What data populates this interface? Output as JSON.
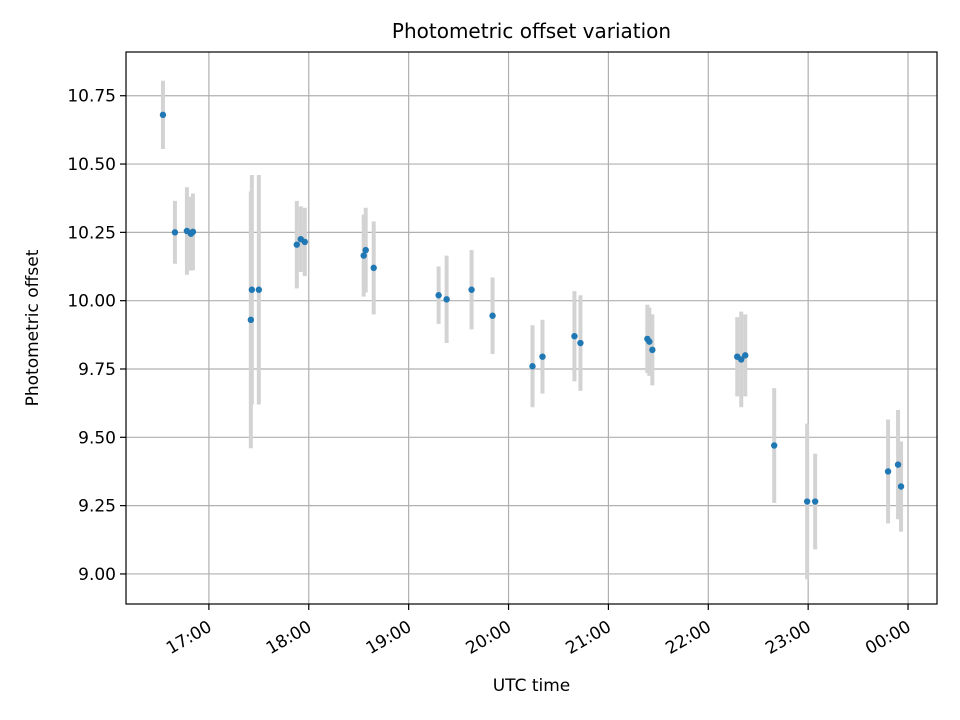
{
  "chart_data": {
    "type": "scatter",
    "title": "Photometric offset variation",
    "xlabel": "UTC time",
    "ylabel": "Photometric offset",
    "x_axis": {
      "ticks": [
        "17:00",
        "18:00",
        "19:00",
        "20:00",
        "21:00",
        "22:00",
        "23:00",
        "00:00"
      ],
      "tick_hours": [
        17,
        18,
        19,
        20,
        21,
        22,
        23,
        24
      ],
      "range_hours": [
        16.17,
        24.29
      ],
      "tick_label_rotation_deg": 30
    },
    "y_axis": {
      "ticks": [
        "9.00",
        "9.25",
        "9.50",
        "9.75",
        "10.00",
        "10.25",
        "10.50",
        "10.75"
      ],
      "tick_values": [
        9.0,
        9.25,
        9.5,
        9.75,
        10.0,
        10.25,
        10.5,
        10.75
      ],
      "ylim": [
        8.89,
        10.91
      ]
    },
    "grid": true,
    "point_color": "#1f77b4",
    "errorbar_color": "#d3d3d3",
    "series": [
      {
        "points": [
          {
            "x": 16.54,
            "y": 10.68,
            "err": 0.125
          },
          {
            "x": 16.66,
            "y": 10.25,
            "err": 0.115
          },
          {
            "x": 16.78,
            "y": 10.255,
            "err": 0.16
          },
          {
            "x": 16.82,
            "y": 10.245,
            "err": 0.135
          },
          {
            "x": 16.84,
            "y": 10.252,
            "err": 0.14
          },
          {
            "x": 17.42,
            "y": 9.93,
            "err": 0.47
          },
          {
            "x": 17.43,
            "y": 10.04,
            "err": 0.42
          },
          {
            "x": 17.5,
            "y": 10.04,
            "err": 0.42
          },
          {
            "x": 17.88,
            "y": 10.205,
            "err": 0.16
          },
          {
            "x": 17.92,
            "y": 10.225,
            "err": 0.12
          },
          {
            "x": 17.96,
            "y": 10.215,
            "err": 0.125
          },
          {
            "x": 18.55,
            "y": 10.165,
            "err": 0.15
          },
          {
            "x": 18.57,
            "y": 10.185,
            "err": 0.155
          },
          {
            "x": 18.65,
            "y": 10.12,
            "err": 0.17
          },
          {
            "x": 19.3,
            "y": 10.02,
            "err": 0.105
          },
          {
            "x": 19.38,
            "y": 10.005,
            "err": 0.16
          },
          {
            "x": 19.63,
            "y": 10.04,
            "err": 0.145
          },
          {
            "x": 19.84,
            "y": 9.945,
            "err": 0.14
          },
          {
            "x": 20.24,
            "y": 9.76,
            "err": 0.15
          },
          {
            "x": 20.34,
            "y": 9.795,
            "err": 0.135
          },
          {
            "x": 20.66,
            "y": 9.87,
            "err": 0.165
          },
          {
            "x": 20.72,
            "y": 9.845,
            "err": 0.175
          },
          {
            "x": 21.39,
            "y": 9.86,
            "err": 0.125
          },
          {
            "x": 21.41,
            "y": 9.85,
            "err": 0.125
          },
          {
            "x": 21.44,
            "y": 9.82,
            "err": 0.13
          },
          {
            "x": 22.29,
            "y": 9.795,
            "err": 0.145
          },
          {
            "x": 22.33,
            "y": 9.785,
            "err": 0.175
          },
          {
            "x": 22.37,
            "y": 9.8,
            "err": 0.15
          },
          {
            "x": 22.66,
            "y": 9.47,
            "err": 0.21
          },
          {
            "x": 22.99,
            "y": 9.265,
            "err": 0.285
          },
          {
            "x": 23.07,
            "y": 9.265,
            "err": 0.175
          },
          {
            "x": 23.8,
            "y": 9.375,
            "err": 0.19
          },
          {
            "x": 23.9,
            "y": 9.4,
            "err": 0.2
          },
          {
            "x": 23.93,
            "y": 9.32,
            "err": 0.165
          }
        ]
      }
    ]
  }
}
